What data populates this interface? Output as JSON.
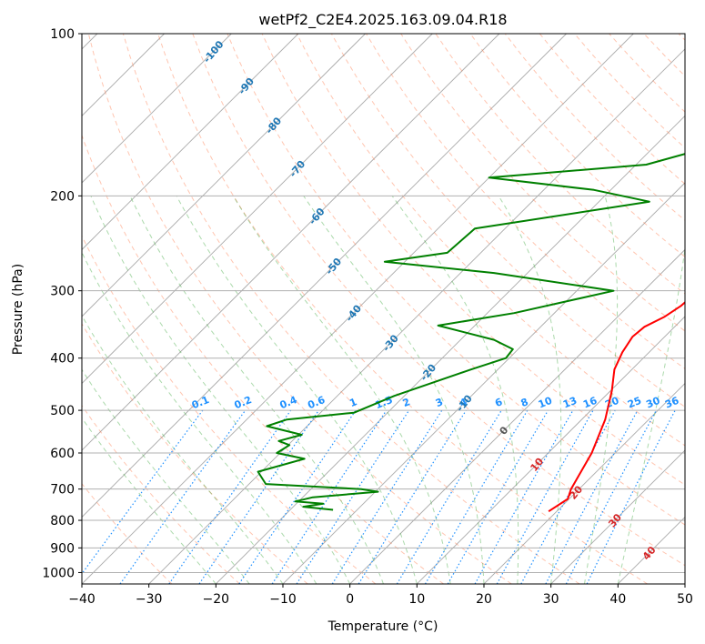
{
  "chart_data": {
    "type": "line",
    "title": "wetPf2_C2E4.2025.163.09.04.R18",
    "xlabel": "Temperature (°C)",
    "ylabel": "Pressure (hPa)",
    "xlim": [
      -40,
      50
    ],
    "ylim": [
      1050,
      100
    ],
    "y_scale": "log",
    "grid": true,
    "x_ticks": [
      -40,
      -30,
      -20,
      -10,
      0,
      10,
      20,
      30,
      40,
      50
    ],
    "y_ticks": [
      100,
      200,
      300,
      400,
      500,
      600,
      700,
      800,
      900,
      1000
    ],
    "skew": 35,
    "colors": {
      "temperature": "#ff0000",
      "dewpoint": "#008000",
      "isotherm": "#aaaaaa",
      "dry_adiabat": "#ff7f50",
      "moist_adiabat": "#2ca02c",
      "mixing_ratio": "#1e90ff",
      "label_negative": "#1f77b4",
      "label_zero": "#555555",
      "label_positive": "#d62728"
    },
    "series": [
      {
        "key": "temperature",
        "points": [
          [
            18.8,
            770
          ],
          [
            19.8,
            730
          ],
          [
            18.8,
            700
          ],
          [
            16.5,
            600
          ],
          [
            13.5,
            520
          ],
          [
            10.2,
            460
          ],
          [
            7.4,
            420
          ],
          [
            6.0,
            390
          ],
          [
            5.2,
            365
          ],
          [
            5.5,
            350
          ],
          [
            7.0,
            335
          ],
          [
            7.8,
            320
          ],
          [
            8.2,
            300
          ],
          [
            8.3,
            280
          ],
          [
            8.0,
            260
          ],
          [
            7.2,
            240
          ],
          [
            5.4,
            220
          ],
          [
            4.2,
            200
          ],
          [
            3.6,
            185
          ],
          [
            2.4,
            170
          ],
          [
            0.0,
            155
          ],
          [
            0.2,
            145
          ],
          [
            1.8,
            135
          ],
          [
            1.1,
            125
          ],
          [
            0.2,
            115
          ],
          [
            -0.9,
            108
          ],
          [
            -1.5,
            100
          ]
        ]
      },
      {
        "key": "dewpoint",
        "points": [
          [
            -13.6,
            765
          ],
          [
            -18.5,
            755
          ],
          [
            -16,
            745
          ],
          [
            -20.5,
            738
          ],
          [
            -18.5,
            725
          ],
          [
            -9.6,
            708
          ],
          [
            -12.5,
            700
          ],
          [
            -27.5,
            685
          ],
          [
            -30.5,
            650
          ],
          [
            -25.5,
            615
          ],
          [
            -30.5,
            600
          ],
          [
            -29.8,
            580
          ],
          [
            -32,
            570
          ],
          [
            -29.5,
            555
          ],
          [
            -36,
            535
          ],
          [
            -34,
            520
          ],
          [
            -25,
            505
          ],
          [
            -21.5,
            470
          ],
          [
            -14,
            420
          ],
          [
            -10.5,
            400
          ],
          [
            -10.8,
            385
          ],
          [
            -15,
            370
          ],
          [
            -25.5,
            348
          ],
          [
            -16,
            330
          ],
          [
            -4.5,
            300
          ],
          [
            -25,
            278
          ],
          [
            -43,
            265
          ],
          [
            -35,
            255
          ],
          [
            -34.5,
            230
          ],
          [
            -12.5,
            205
          ],
          [
            -22.5,
            195
          ],
          [
            -40,
            185
          ],
          [
            -18.5,
            175
          ],
          [
            -12,
            163
          ],
          [
            -14,
            150
          ],
          [
            -13.5,
            140
          ],
          [
            -10,
            130
          ],
          [
            -9,
            120
          ],
          [
            -8,
            110
          ],
          [
            -6,
            100
          ]
        ]
      }
    ],
    "isotherm_labels": [
      "-100",
      "-90",
      "-80",
      "-70",
      "-60",
      "-50",
      "-40",
      "-30",
      "-20",
      "-10",
      "0",
      "10",
      "20",
      "30",
      "40"
    ],
    "mixing_ratio_labels": [
      "0.1",
      "0.2",
      "0.4",
      "0.6",
      "1",
      "1.5",
      "2",
      "3",
      "4",
      "6",
      "8",
      "10",
      "13",
      "16",
      "20",
      "25",
      "30",
      "36"
    ]
  }
}
